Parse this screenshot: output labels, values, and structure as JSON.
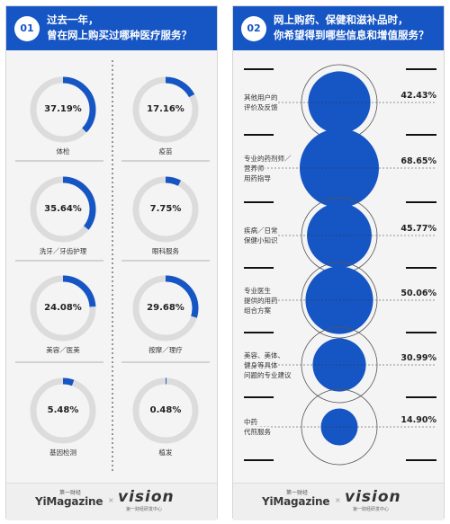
{
  "panel1": {
    "number": "01",
    "title_lines": [
      "过去一年，",
      "曾在网上购买过哪种医疗服务？"
    ]
  },
  "panel2": {
    "number": "02",
    "title_lines": [
      "网上购药、保健和滋补品时，",
      "你希望得到哪些信息和增值服务？"
    ]
  },
  "footer": {
    "brand_top": "第一财经",
    "brand_main": "YiMagazine",
    "separator": "×",
    "partner": "vision",
    "partner_sub": "第一财经研发中心"
  },
  "colors": {
    "accent": "#1655c4",
    "track": "#dcdcdc",
    "panel_bg": "#f4f4f4"
  },
  "chart_data": [
    {
      "type": "pie",
      "series": [
        {
          "label": "体检",
          "value": 37.19,
          "display": "37.19%"
        },
        {
          "label": "疫苗",
          "value": 17.16,
          "display": "17.16%"
        },
        {
          "label": "洗牙／牙齿护理",
          "value": 35.64,
          "display": "35.64%"
        },
        {
          "label": "眼科服务",
          "value": 7.75,
          "display": "7.75%"
        },
        {
          "label": "美容／医美",
          "value": 24.08,
          "display": "24.08%"
        },
        {
          "label": "按摩／理疗",
          "value": 29.68,
          "display": "29.68%"
        },
        {
          "label": "基因检测",
          "value": 5.48,
          "display": "5.48%"
        },
        {
          "label": "植发",
          "value": 0.48,
          "display": "0.48%"
        }
      ]
    },
    {
      "type": "scatter",
      "series": [
        {
          "label_lines": [
            "其他用户的",
            "评价及反馈"
          ],
          "value": 42.43,
          "display": "42.43%"
        },
        {
          "label_lines": [
            "专业的药剂师／",
            "营养师",
            "用药指导"
          ],
          "value": 68.65,
          "display": "68.65%"
        },
        {
          "label_lines": [
            "疾病／日常",
            "保健小知识"
          ],
          "value": 45.77,
          "display": "45.77%"
        },
        {
          "label_lines": [
            "专业医生",
            "提供的用药",
            "组合方案"
          ],
          "value": 50.06,
          "display": "50.06%"
        },
        {
          "label_lines": [
            "美容、美体、",
            "健身等具体",
            "问题的专业建议"
          ],
          "value": 30.99,
          "display": "30.99%"
        },
        {
          "label_lines": [
            "中药",
            "代煎服务"
          ],
          "value": 14.9,
          "display": "14.90%"
        }
      ]
    }
  ]
}
